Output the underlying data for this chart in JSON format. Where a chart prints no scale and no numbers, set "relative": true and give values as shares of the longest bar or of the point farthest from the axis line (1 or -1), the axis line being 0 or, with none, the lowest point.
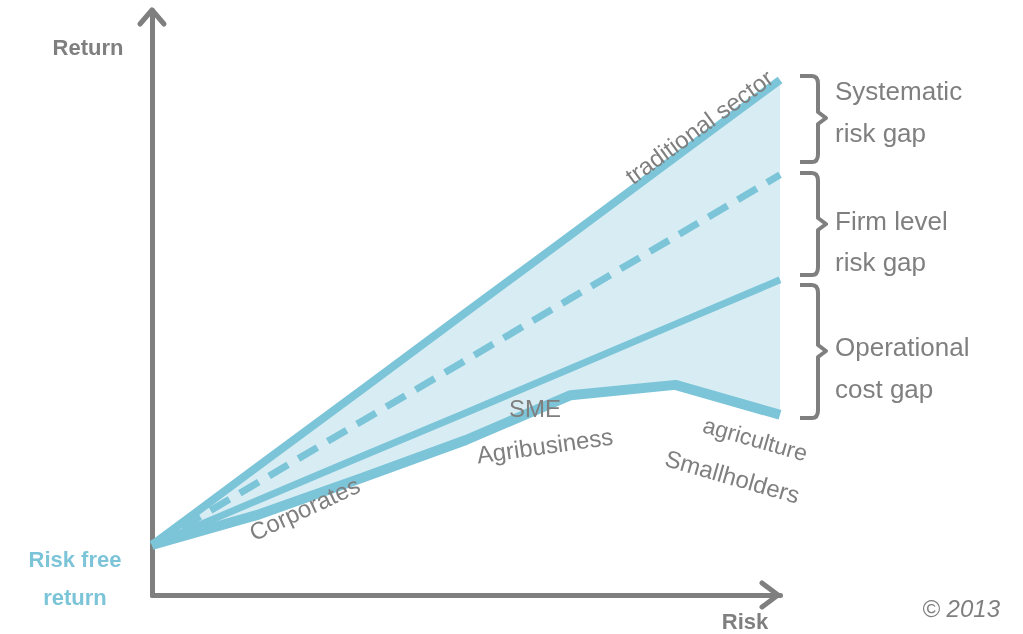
{
  "chart_data": {
    "type": "line",
    "relative": true,
    "xlabel": "Risk",
    "ylabel": "Return",
    "categories": [
      null,
      null,
      null,
      null,
      null,
      null,
      null
    ],
    "series": [
      {
        "color": "#7cc4d8",
        "line_style": "solid",
        "values": [
          0.097,
          0.248,
          0.398,
          0.549,
          0.699,
          0.85,
          1
        ],
        "lower": [
          0.097,
          0.155,
          0.227,
          0.301,
          0.388,
          0.408,
          0.35
        ],
        "upper": [
          0.097,
          0.248,
          0.398,
          0.549,
          0.699,
          0.85,
          1
        ]
      },
      {
        "color": "#7cc4d8",
        "line_style": "dashed",
        "values": [
          0.097,
          0.217,
          0.337,
          0.456,
          0.576,
          0.696,
          0.816
        ]
      },
      {
        "color": "#7cc4d8",
        "line_style": "solid",
        "values": [
          0.097,
          0.183,
          0.269,
          0.354,
          0.44,
          0.526,
          0.612
        ]
      },
      {
        "color": "#7cc4d8",
        "line_style": "solid",
        "values": [
          0.097,
          0.155,
          0.227,
          0.301,
          0.388,
          0.408,
          0.35
        ]
      }
    ],
    "annotations": [
      "traditional sector",
      "SME",
      "Agribusiness",
      "agriculture",
      "Smallholders",
      "Corporates",
      "Systematic",
      "risk gap",
      "Firm level",
      "risk gap",
      "Operational",
      "cost gap",
      "Risk free",
      "return",
      "© 2013"
    ],
    "grid": false,
    "marker": "none"
  }
}
